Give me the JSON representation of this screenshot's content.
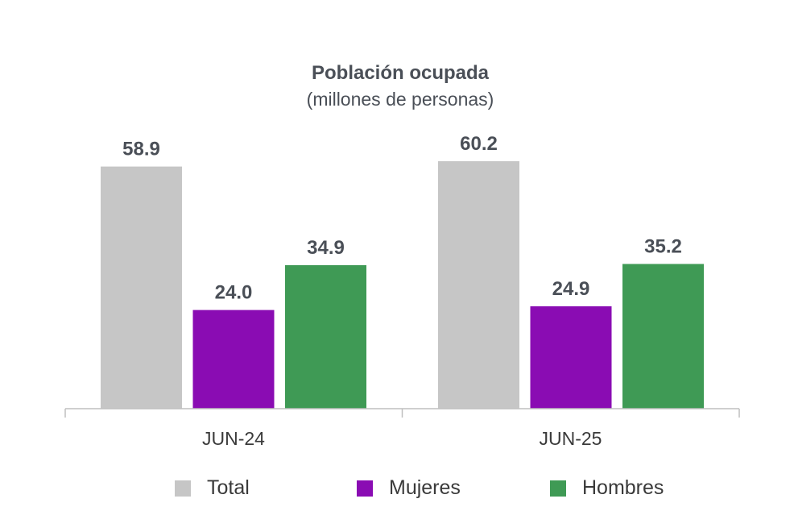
{
  "chart_data": {
    "type": "bar",
    "title": "Población ocupada",
    "subtitle": "(millones de personas)",
    "categories": [
      "JUN-24",
      "JUN-25"
    ],
    "series": [
      {
        "name": "Total",
        "color": "#c6c6c6",
        "values": [
          58.9,
          60.2
        ]
      },
      {
        "name": "Mujeres",
        "color": "#8a0cb3",
        "values": [
          24.0,
          24.9
        ]
      },
      {
        "name": "Hombres",
        "color": "#3f9a55",
        "values": [
          34.9,
          35.2
        ]
      }
    ],
    "value_labels": [
      [
        "58.9",
        "60.2"
      ],
      [
        "24.0",
        "24.9"
      ],
      [
        "34.9",
        "35.2"
      ]
    ],
    "ylim": [
      0,
      70
    ],
    "grid": false,
    "legend": "bottom"
  }
}
